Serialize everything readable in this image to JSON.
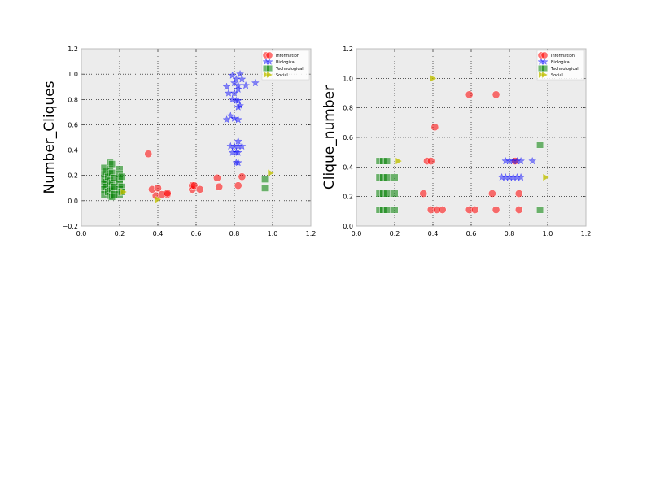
{
  "colors": {
    "Information": "#ff0000",
    "Biological": "#0000ff",
    "Technological": "#008000",
    "Social": "#bfbf00",
    "axes_bg": "#ececec"
  },
  "markers": {
    "Information": "circle",
    "Biological": "star",
    "Technological": "square",
    "Social": "triangle-right"
  },
  "chart_data": [
    {
      "type": "scatter",
      "title": "",
      "xlabel": "",
      "ylabel": "Number_Cliques",
      "xlim": [
        0.0,
        1.2
      ],
      "ylim": [
        -0.2,
        1.2
      ],
      "xticks": [
        "0.0",
        "0.2",
        "0.4",
        "0.6",
        "0.8",
        "1.0",
        "1.2"
      ],
      "yticks": [
        "−0.2",
        "0.0",
        "0.2",
        "0.4",
        "0.6",
        "0.8",
        "1.0",
        "1.2"
      ],
      "grid": true,
      "legend_position": "top-right",
      "series": [
        {
          "name": "Information",
          "points": [
            [
              0.35,
              0.37
            ],
            [
              0.37,
              0.09
            ],
            [
              0.39,
              0.04
            ],
            [
              0.4,
              0.1
            ],
            [
              0.42,
              0.05
            ],
            [
              0.45,
              0.05
            ],
            [
              0.45,
              0.06
            ],
            [
              0.58,
              0.09
            ],
            [
              0.58,
              0.12
            ],
            [
              0.59,
              0.12
            ],
            [
              0.62,
              0.09
            ],
            [
              0.71,
              0.18
            ],
            [
              0.72,
              0.11
            ],
            [
              0.82,
              0.12
            ],
            [
              0.84,
              0.19
            ]
          ]
        },
        {
          "name": "Biological",
          "points": [
            [
              0.76,
              0.9
            ],
            [
              0.77,
              0.85
            ],
            [
              0.79,
              0.99
            ],
            [
              0.79,
              0.8
            ],
            [
              0.8,
              0.93
            ],
            [
              0.81,
              0.96
            ],
            [
              0.82,
              0.91
            ],
            [
              0.82,
              0.88
            ],
            [
              0.82,
              0.79
            ],
            [
              0.83,
              0.75
            ],
            [
              0.83,
              1.0
            ],
            [
              0.84,
              0.96
            ],
            [
              0.86,
              0.91
            ],
            [
              0.91,
              0.93
            ],
            [
              0.8,
              0.85
            ],
            [
              0.81,
              0.79
            ],
            [
              0.82,
              0.74
            ],
            [
              0.78,
              0.67
            ],
            [
              0.76,
              0.64
            ],
            [
              0.8,
              0.65
            ],
            [
              0.82,
              0.64
            ],
            [
              0.78,
              0.43
            ],
            [
              0.8,
              0.43
            ],
            [
              0.82,
              0.43
            ],
            [
              0.84,
              0.43
            ],
            [
              0.79,
              0.38
            ],
            [
              0.81,
              0.38
            ],
            [
              0.82,
              0.38
            ],
            [
              0.82,
              0.47
            ],
            [
              0.81,
              0.3
            ],
            [
              0.82,
              0.3
            ]
          ]
        },
        {
          "name": "Technological",
          "points": [
            [
              0.12,
              0.26
            ],
            [
              0.12,
              0.21
            ],
            [
              0.12,
              0.17
            ],
            [
              0.12,
              0.13
            ],
            [
              0.12,
              0.09
            ],
            [
              0.12,
              0.05
            ],
            [
              0.13,
              0.23
            ],
            [
              0.13,
              0.15
            ],
            [
              0.13,
              0.11
            ],
            [
              0.14,
              0.19
            ],
            [
              0.14,
              0.07
            ],
            [
              0.15,
              0.3
            ],
            [
              0.15,
              0.25
            ],
            [
              0.15,
              0.21
            ],
            [
              0.15,
              0.16
            ],
            [
              0.15,
              0.12
            ],
            [
              0.15,
              0.08
            ],
            [
              0.15,
              0.04
            ],
            [
              0.16,
              0.29
            ],
            [
              0.16,
              0.22
            ],
            [
              0.16,
              0.14
            ],
            [
              0.16,
              0.09
            ],
            [
              0.16,
              0.03
            ],
            [
              0.17,
              0.18
            ],
            [
              0.17,
              0.11
            ],
            [
              0.17,
              0.05
            ],
            [
              0.2,
              0.25
            ],
            [
              0.2,
              0.21
            ],
            [
              0.2,
              0.17
            ],
            [
              0.2,
              0.13
            ],
            [
              0.2,
              0.09
            ],
            [
              0.2,
              0.05
            ],
            [
              0.21,
              0.19
            ],
            [
              0.21,
              0.11
            ],
            [
              0.21,
              0.07
            ],
            [
              0.96,
              0.17
            ],
            [
              0.96,
              0.1
            ]
          ]
        },
        {
          "name": "Social",
          "points": [
            [
              0.22,
              0.07
            ],
            [
              0.4,
              0.01
            ],
            [
              0.99,
              0.22
            ]
          ]
        }
      ]
    },
    {
      "type": "scatter",
      "title": "",
      "xlabel": "",
      "ylabel": "Clique_number",
      "xlim": [
        0.0,
        1.2
      ],
      "ylim": [
        0.0,
        1.2
      ],
      "xticks": [
        "0.0",
        "0.2",
        "0.4",
        "0.6",
        "0.8",
        "1.0",
        "1.2"
      ],
      "yticks": [
        "0.0",
        "0.2",
        "0.4",
        "0.6",
        "0.8",
        "1.0",
        "1.2"
      ],
      "grid": true,
      "legend_position": "top-right",
      "series": [
        {
          "name": "Information",
          "points": [
            [
              0.59,
              0.89
            ],
            [
              0.73,
              0.89
            ],
            [
              0.41,
              0.67
            ],
            [
              0.37,
              0.44
            ],
            [
              0.39,
              0.44
            ],
            [
              0.83,
              0.44
            ],
            [
              0.35,
              0.22
            ],
            [
              0.71,
              0.22
            ],
            [
              0.85,
              0.22
            ],
            [
              0.39,
              0.11
            ],
            [
              0.42,
              0.11
            ],
            [
              0.45,
              0.11
            ],
            [
              0.59,
              0.11
            ],
            [
              0.62,
              0.11
            ],
            [
              0.73,
              0.11
            ],
            [
              0.85,
              0.11
            ]
          ]
        },
        {
          "name": "Biological",
          "points": [
            [
              0.78,
              0.44
            ],
            [
              0.8,
              0.44
            ],
            [
              0.82,
              0.44
            ],
            [
              0.84,
              0.44
            ],
            [
              0.86,
              0.44
            ],
            [
              0.92,
              0.44
            ],
            [
              0.76,
              0.33
            ],
            [
              0.78,
              0.33
            ],
            [
              0.8,
              0.33
            ],
            [
              0.82,
              0.33
            ],
            [
              0.84,
              0.33
            ],
            [
              0.86,
              0.33
            ]
          ]
        },
        {
          "name": "Technological",
          "points": [
            [
              0.12,
              0.44
            ],
            [
              0.14,
              0.44
            ],
            [
              0.16,
              0.44
            ],
            [
              0.12,
              0.33
            ],
            [
              0.14,
              0.33
            ],
            [
              0.16,
              0.33
            ],
            [
              0.2,
              0.33
            ],
            [
              0.12,
              0.22
            ],
            [
              0.14,
              0.22
            ],
            [
              0.16,
              0.22
            ],
            [
              0.2,
              0.22
            ],
            [
              0.12,
              0.11
            ],
            [
              0.14,
              0.11
            ],
            [
              0.16,
              0.11
            ],
            [
              0.2,
              0.11
            ],
            [
              0.96,
              0.55
            ],
            [
              0.96,
              0.11
            ]
          ]
        },
        {
          "name": "Social",
          "points": [
            [
              0.4,
              1.0
            ],
            [
              0.22,
              0.44
            ],
            [
              0.99,
              0.33
            ]
          ]
        }
      ]
    }
  ]
}
